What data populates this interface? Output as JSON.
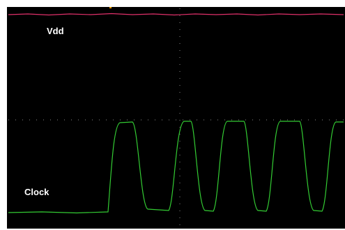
{
  "labels": {
    "vdd": "Vdd",
    "clock": "Clock"
  }
}
